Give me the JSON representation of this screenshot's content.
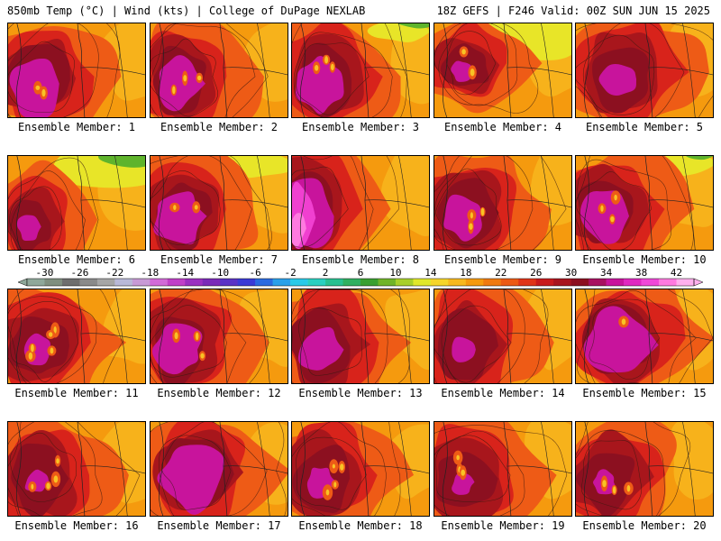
{
  "header": {
    "left": "850mb Temp (°C) | Wind (kts) | College of DuPage NEXLAB",
    "right": "18Z GEFS | F246 Valid: 00Z SUN JUN 15 2025"
  },
  "colors": {
    "warm_orange": "#f59a0e",
    "yellow_orange": "#f8c325",
    "yellow": "#e8e528",
    "green": "#5fb42c",
    "red_orange": "#ee5b16",
    "red": "#d8231b",
    "dark_red": "#a8161c",
    "maroon": "#8c1020",
    "magenta": "#c8149c",
    "pink": "#f040d0",
    "hot_pink": "#ff7ae0"
  },
  "colorbar": {
    "ticks": [
      "-30",
      "-26",
      "-22",
      "-18",
      "-14",
      "-10",
      "-6",
      "-2",
      "2",
      "6",
      "10",
      "14",
      "18",
      "22",
      "26",
      "30",
      "34",
      "38",
      "42"
    ],
    "bins": [
      "#8fa89a",
      "#7f8f7f",
      "#6e6e6e",
      "#8a8a8a",
      "#a6a6a6",
      "#b9b9d8",
      "#c89ad6",
      "#d26ad8",
      "#c040c8",
      "#9a30c0",
      "#7a2ab8",
      "#5a32c6",
      "#3a3ad6",
      "#2a6ae0",
      "#2aa0ea",
      "#2acae8",
      "#2ad0c0",
      "#28c090",
      "#30b060",
      "#3aa030",
      "#70b428",
      "#a8d02a",
      "#e0e82a",
      "#f6d52a",
      "#f8b81e",
      "#f59a0e",
      "#f07a10",
      "#ec5a14",
      "#e03418",
      "#c81a1c",
      "#a8141e",
      "#8c1020",
      "#a81060",
      "#c8149c",
      "#e028c0",
      "#f048d8",
      "#ff7ae0",
      "#ffb0ee"
    ]
  },
  "members": [
    {
      "label": "Ensemble Member: 1",
      "style": "hot_west",
      "mag": 0.9,
      "yellow": 0,
      "green": 0,
      "spot": 0.3
    },
    {
      "label": "Ensemble Member: 2",
      "style": "hot_west",
      "mag": 0.7,
      "yellow": 0,
      "green": 0,
      "spot": 0.5
    },
    {
      "label": "Ensemble Member: 3",
      "style": "hot_west",
      "mag": 0.8,
      "yellow": 0.2,
      "green": 0.3,
      "spot": 0.6
    },
    {
      "label": "Ensemble Member: 4",
      "style": "warm",
      "mag": 0.2,
      "yellow": 0.8,
      "green": 0,
      "spot": 0.3
    },
    {
      "label": "Ensemble Member: 5",
      "style": "hot_center",
      "mag": 0.4,
      "yellow": 0,
      "green": 0,
      "spot": 0
    },
    {
      "label": "Ensemble Member: 6",
      "style": "cool_ne",
      "mag": 0.3,
      "yellow": 1,
      "green": 0.8,
      "spot": 0
    },
    {
      "label": "Ensemble Member: 7",
      "style": "hot_west",
      "mag": 0.8,
      "yellow": 0.3,
      "green": 0,
      "spot": 0.3
    },
    {
      "label": "Ensemble Member: 8",
      "style": "hot_far_west",
      "mag": 1.0,
      "yellow": 0,
      "green": 0,
      "spot": 0
    },
    {
      "label": "Ensemble Member: 9",
      "style": "hot_west",
      "mag": 0.6,
      "yellow": 0,
      "green": 0,
      "spot": 0.6
    },
    {
      "label": "Ensemble Member: 10",
      "style": "hot_west",
      "mag": 0.8,
      "yellow": 0.2,
      "green": 0.2,
      "spot": 0.5
    },
    {
      "label": "Ensemble Member: 11",
      "style": "hot_spots",
      "mag": 0.3,
      "yellow": 0,
      "green": 0,
      "spot": 1.0
    },
    {
      "label": "Ensemble Member: 12",
      "style": "hot_west",
      "mag": 0.7,
      "yellow": 0,
      "green": 0,
      "spot": 0.6
    },
    {
      "label": "Ensemble Member: 13",
      "style": "hot_west",
      "mag": 0.6,
      "yellow": 0,
      "green": 0,
      "spot": 0
    },
    {
      "label": "Ensemble Member: 14",
      "style": "hot_west",
      "mag": 0.3,
      "yellow": 0,
      "green": 0,
      "spot": 0
    },
    {
      "label": "Ensemble Member: 15",
      "style": "hot_center",
      "mag": 1.0,
      "yellow": 0,
      "green": 0,
      "spot": 0.2
    },
    {
      "label": "Ensemble Member: 16",
      "style": "hot_spots",
      "mag": 0.2,
      "yellow": 0,
      "green": 0,
      "spot": 0.8
    },
    {
      "label": "Ensemble Member: 17",
      "style": "hot_center",
      "mag": 1.0,
      "yellow": 0,
      "green": 0,
      "spot": 0
    },
    {
      "label": "Ensemble Member: 18",
      "style": "hot_spots",
      "mag": 0.3,
      "yellow": 0,
      "green": 0,
      "spot": 0.7
    },
    {
      "label": "Ensemble Member: 19",
      "style": "hot_spots",
      "mag": 0.2,
      "yellow": 0,
      "green": 0,
      "spot": 0.6
    },
    {
      "label": "Ensemble Member: 20",
      "style": "hot_spots",
      "mag": 0.2,
      "yellow": 0,
      "green": 0,
      "spot": 0.5
    }
  ]
}
